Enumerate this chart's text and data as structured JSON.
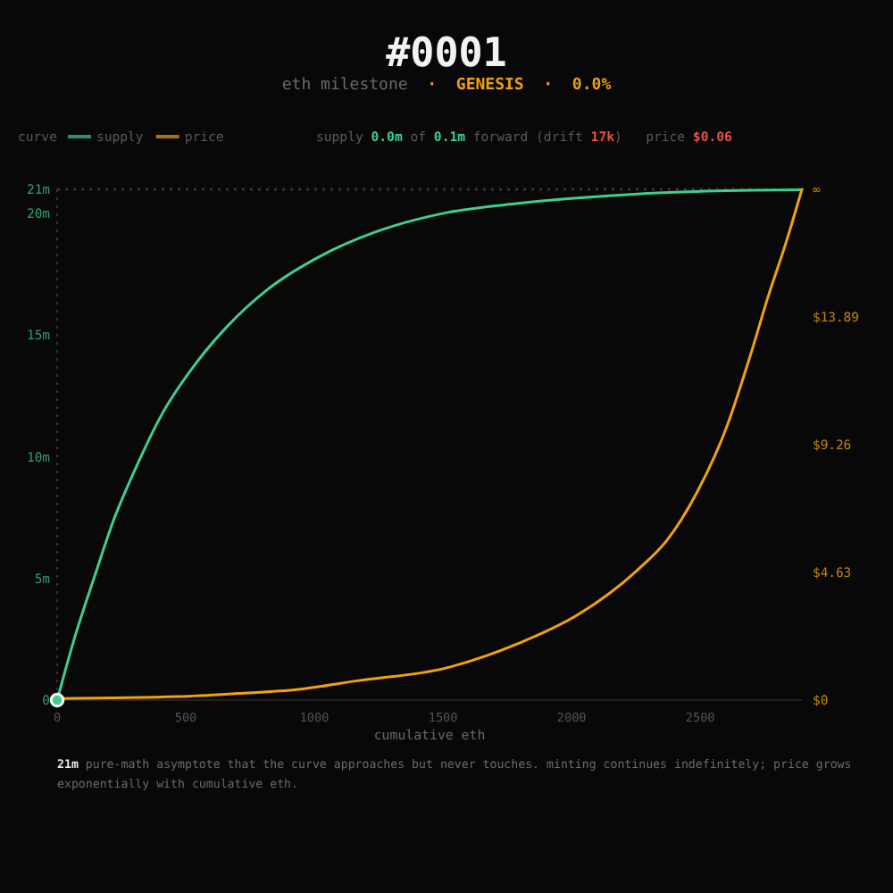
{
  "chart_data": {
    "type": "line",
    "title": "#0001",
    "subtitle": "eth milestone · GENESIS · 0.0%",
    "legend_title": "curve",
    "legend": "top left",
    "xlabel": "cumulative eth",
    "xlim": [
      0,
      2895
    ],
    "xticks": [
      0,
      500,
      1000,
      1500,
      2000,
      2500
    ],
    "ylim": [
      0,
      21
    ],
    "yticks": [
      0,
      {
        "value": 5,
        "label": "5m"
      },
      {
        "value": 10,
        "label": "10m"
      },
      {
        "value": 15,
        "label": "15m"
      },
      {
        "value": 20,
        "label": "20m"
      },
      {
        "value": 21,
        "label": "21m"
      }
    ],
    "y2lim": [
      0,
      18.52
    ],
    "y2ticks": [
      {
        "value": 0,
        "label": "$0"
      },
      {
        "value": 4.63,
        "label": "$4.63"
      },
      {
        "value": 9.26,
        "label": "$9.26"
      },
      {
        "value": 13.89,
        "label": "$13.89"
      },
      {
        "value": 18.52,
        "label": "∞"
      }
    ],
    "ref_lines": [
      {
        "axis": "y",
        "value": 21,
        "color": "#3a3a3a",
        "line_style": "dotted"
      }
    ],
    "series": [
      {
        "name": "supply",
        "color": "#3ecf8e",
        "x": [
          0,
          69,
          146,
          215,
          312,
          403,
          542,
          660,
          819,
          1028,
          1236,
          1514,
          1792,
          2021,
          2257,
          2486,
          2895
        ],
        "values": [
          0,
          2.6,
          5.1,
          7.27,
          9.69,
          11.67,
          13.88,
          15.35,
          16.89,
          18.28,
          19.24,
          20.04,
          20.42,
          20.64,
          20.81,
          20.91,
          20.98
        ]
      },
      {
        "name": "price",
        "color": "#f0a30a",
        "axis": "y2",
        "x": [
          0,
          472,
          701,
          938,
          1167,
          1514,
          1792,
          2023,
          2255,
          2370,
          2486,
          2602,
          2694,
          2764,
          2833,
          2895
        ],
        "values": [
          0.06,
          0.13,
          0.24,
          0.39,
          0.7,
          1.17,
          2.05,
          3.09,
          4.71,
          5.79,
          7.51,
          9.89,
          12.48,
          14.64,
          16.58,
          18.52
        ]
      },
      {
        "type": "scatter",
        "color": "#3ecf8e",
        "marker": "circle",
        "x": [
          0
        ],
        "values": [
          0
        ]
      }
    ],
    "annotations": [
      "supply 0.0m of 0.1m forward (drift 17k)",
      "price $0.06",
      "21m pure-math asymptote that the curve approaches but never touches. minting continues indefinitely; price grows exponentially with cumulative eth."
    ]
  }
}
